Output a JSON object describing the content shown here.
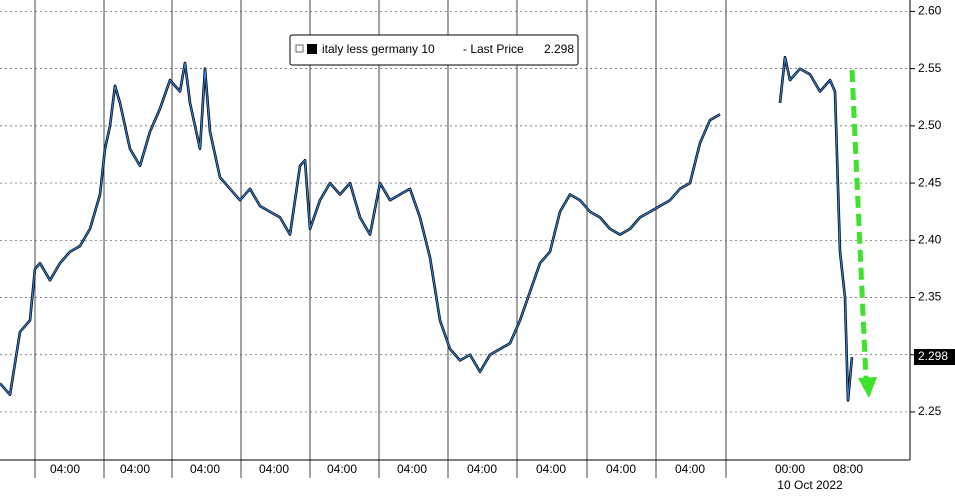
{
  "chart_data": {
    "type": "line",
    "legend_suffix": "- Last Price",
    "date_label": "10 Oct 2022",
    "x": [
      0,
      10,
      20,
      30,
      35,
      40,
      50,
      60,
      70,
      80,
      90,
      100,
      105,
      110,
      115,
      120,
      130,
      140,
      150,
      160,
      170,
      180,
      185,
      190,
      200,
      205,
      210,
      220,
      230,
      240,
      250,
      260,
      270,
      280,
      290,
      300,
      305,
      310,
      320,
      330,
      340,
      350,
      360,
      370,
      380,
      390,
      400,
      410,
      420,
      430,
      440,
      450,
      460,
      470,
      480,
      490,
      500,
      510,
      520,
      530,
      540,
      550,
      560,
      570,
      580,
      590,
      600,
      610,
      620,
      630,
      640,
      650,
      660,
      670,
      680,
      690,
      700,
      710,
      720,
      750,
      780,
      785,
      790,
      800,
      810,
      820,
      830,
      835,
      840,
      845,
      848,
      852
    ],
    "series": [
      {
        "name": "italy less germany 10",
        "color": "#2f7fd6",
        "values": [
          2.275,
          2.265,
          2.32,
          2.33,
          2.375,
          2.38,
          2.365,
          2.38,
          2.39,
          2.395,
          2.41,
          2.44,
          2.48,
          2.5,
          2.535,
          2.52,
          2.48,
          2.465,
          2.495,
          2.515,
          2.54,
          2.53,
          2.555,
          2.52,
          2.48,
          2.55,
          2.495,
          2.455,
          2.445,
          2.435,
          2.445,
          2.43,
          2.425,
          2.42,
          2.405,
          2.465,
          2.47,
          2.41,
          2.435,
          2.45,
          2.44,
          2.45,
          2.42,
          2.405,
          2.45,
          2.435,
          2.44,
          2.445,
          2.42,
          2.385,
          2.33,
          2.305,
          2.295,
          2.3,
          2.285,
          2.3,
          2.305,
          2.31,
          2.33,
          2.355,
          2.38,
          2.39,
          2.425,
          2.44,
          2.435,
          2.425,
          2.42,
          2.41,
          2.405,
          2.41,
          2.42,
          2.425,
          2.43,
          2.435,
          2.445,
          2.45,
          2.485,
          2.505,
          2.51,
          null,
          2.52,
          2.56,
          2.54,
          2.55,
          2.545,
          2.53,
          2.54,
          2.53,
          2.39,
          2.35,
          2.26,
          2.298
        ]
      }
    ],
    "xlim": [
      0,
      910
    ],
    "xticks": [
      {
        "value": 65,
        "label": "04:00"
      },
      {
        "value": 135,
        "label": "04:00"
      },
      {
        "value": 205,
        "label": "04:00"
      },
      {
        "value": 274,
        "label": "04:00"
      },
      {
        "value": 342,
        "label": "04:00"
      },
      {
        "value": 412,
        "label": "04:00"
      },
      {
        "value": 482,
        "label": "04:00"
      },
      {
        "value": 551,
        "label": "04:00"
      },
      {
        "value": 621,
        "label": "04:00"
      },
      {
        "value": 690,
        "label": "04:00"
      },
      {
        "value": 790,
        "label": "00:00"
      },
      {
        "value": 848,
        "label": "08:00"
      }
    ],
    "ylim": [
      2.208,
      2.61
    ],
    "yticks": [
      {
        "value": 2.25,
        "label": "2.25"
      },
      {
        "value": 2.3,
        "label": "2.30"
      },
      {
        "value": 2.35,
        "label": "2.35"
      },
      {
        "value": 2.4,
        "label": "2.40"
      },
      {
        "value": 2.45,
        "label": "2.45"
      },
      {
        "value": 2.5,
        "label": "2.50"
      },
      {
        "value": 2.55,
        "label": "2.55"
      },
      {
        "value": 2.6,
        "label": "2.60"
      }
    ],
    "grid": true
  }
}
